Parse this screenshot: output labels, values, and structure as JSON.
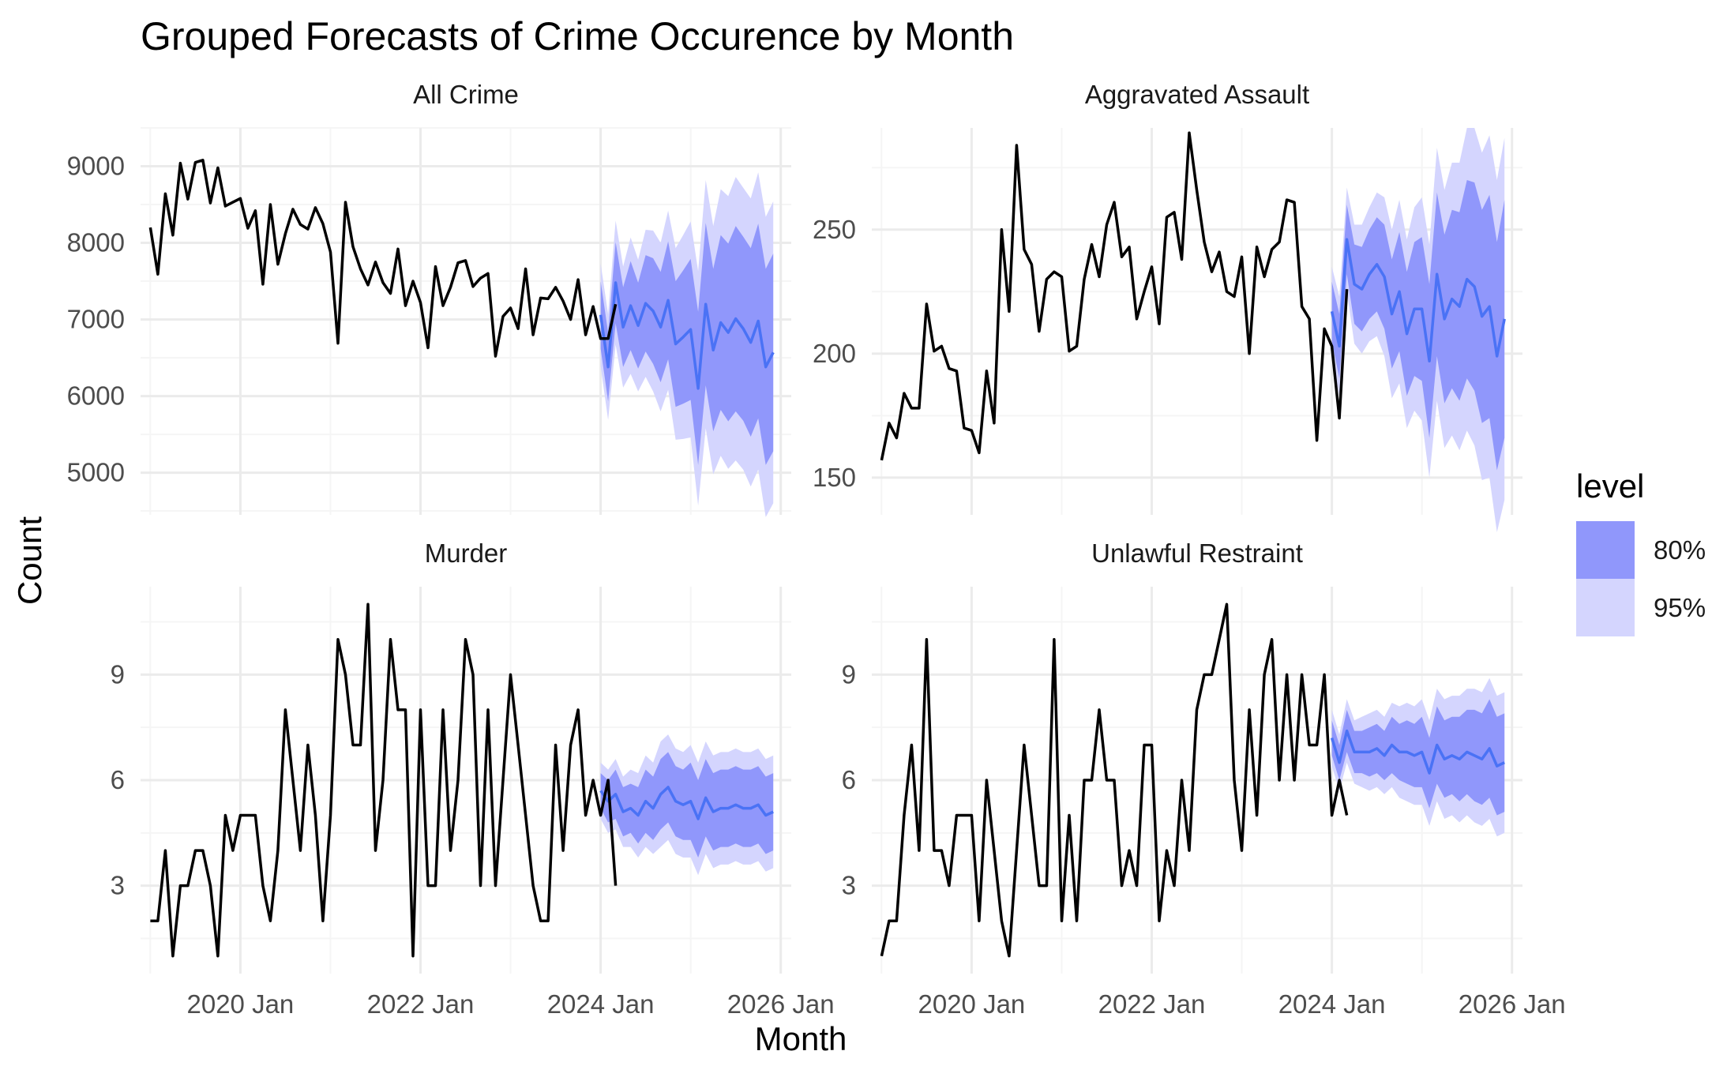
{
  "chart_data": {
    "type": "line",
    "title": "Grouped Forecasts of Crime Occurence by Month",
    "xlabel": "Month",
    "ylabel": "Count",
    "x_ticks": [
      "2020 Jan",
      "2022 Jan",
      "2024 Jan",
      "2026 Jan"
    ],
    "grid": true,
    "legend": {
      "title": "level",
      "position": "right",
      "entries": [
        {
          "label": "80%",
          "color": "#9097fb"
        },
        {
          "label": "95%",
          "color": "#d4d5fe"
        }
      ]
    },
    "colors": {
      "history": "#000000",
      "forecast": "#4a72f5",
      "band80": "#9097fb",
      "band95": "#d4d5fe",
      "grid_major": "#ebebeb",
      "grid_minor": "#f5f5f5"
    },
    "history_start": "2019-01",
    "forecast_start": "2024-01",
    "panels": [
      {
        "name": "All Crime",
        "ylim": [
          4450,
          9500
        ],
        "y_ticks": [
          5000,
          6000,
          7000,
          8000,
          9000
        ],
        "history": [
          8200,
          7590,
          8640,
          8100,
          9040,
          8570,
          9050,
          9080,
          8520,
          8980,
          8480,
          8530,
          8580,
          8190,
          8420,
          7460,
          8500,
          7720,
          8120,
          8440,
          8240,
          8180,
          8460,
          8250,
          7880,
          6690,
          8530,
          7950,
          7660,
          7450,
          7750,
          7480,
          7340,
          7920,
          7180,
          7500,
          7220,
          6630,
          7690,
          7180,
          7420,
          7740,
          7770,
          7430,
          7540,
          7600,
          6520,
          7040,
          7150,
          6880,
          7660,
          6800,
          7280,
          7270,
          7420,
          7240,
          7000,
          7520,
          6800,
          7170,
          6750,
          6750,
          7200
        ],
        "forecast": [
          7060,
          6380,
          7480,
          6900,
          7180,
          6920,
          7210,
          7110,
          6900,
          7250,
          6680,
          6770,
          6870,
          6100,
          7200,
          6600,
          6960,
          6830,
          7010,
          6880,
          6700,
          6980,
          6380,
          6570
        ],
        "lo80": [
          6620,
          5930,
          6950,
          6380,
          6600,
          6360,
          6580,
          6420,
          6180,
          6480,
          5860,
          5900,
          5950,
          5100,
          6140,
          5540,
          5820,
          5670,
          5800,
          5680,
          5470,
          5710,
          5100,
          5280
        ],
        "hi80": [
          7500,
          6830,
          8010,
          7420,
          7760,
          7480,
          7840,
          7800,
          7620,
          8020,
          7500,
          7640,
          7790,
          7100,
          8260,
          7660,
          8100,
          7990,
          8220,
          8080,
          7930,
          8250,
          7660,
          7860
        ],
        "lo95": [
          6390,
          5690,
          6670,
          6110,
          6290,
          6060,
          6250,
          6060,
          5800,
          6080,
          5430,
          5440,
          5460,
          4570,
          5580,
          4980,
          5220,
          5050,
          5160,
          5040,
          4820,
          5040,
          4420,
          4600
        ],
        "hi95": [
          7730,
          7070,
          8290,
          7690,
          8070,
          7780,
          8170,
          8160,
          8000,
          8420,
          7930,
          8100,
          8280,
          7630,
          8820,
          8220,
          8700,
          8610,
          8860,
          8720,
          8580,
          8920,
          8340,
          8540
        ]
      },
      {
        "name": "Aggravated Assault",
        "ylim": [
          135,
          291
        ],
        "y_ticks": [
          150,
          200,
          250
        ],
        "history": [
          157,
          172,
          166,
          184,
          178,
          178,
          220,
          201,
          203,
          194,
          193,
          170,
          169,
          160,
          193,
          172,
          250,
          217,
          284,
          242,
          236,
          209,
          230,
          233,
          231,
          201,
          203,
          230,
          244,
          231,
          252,
          261,
          239,
          243,
          214,
          225,
          235,
          212,
          255,
          257,
          238,
          289,
          266,
          245,
          233,
          241,
          225,
          223,
          239,
          200,
          243,
          231,
          242,
          245,
          262,
          261,
          219,
          214,
          165,
          210,
          203,
          174,
          226
        ],
        "forecast": [
          217,
          203,
          246,
          228,
          226,
          232,
          236,
          231,
          216,
          225,
          208,
          218,
          218,
          197,
          232,
          214,
          222,
          219,
          230,
          227,
          215,
          219,
          199,
          214
        ],
        "lo80": [
          205,
          190,
          232,
          212,
          209,
          214,
          217,
          210,
          194,
          201,
          183,
          191,
          189,
          166,
          199,
          180,
          186,
          181,
          190,
          185,
          172,
          174,
          153,
          166
        ],
        "hi80": [
          229,
          216,
          260,
          244,
          243,
          250,
          255,
          252,
          238,
          249,
          233,
          245,
          247,
          228,
          265,
          248,
          258,
          257,
          270,
          269,
          258,
          264,
          245,
          262
        ],
        "lo95": [
          199,
          183,
          225,
          204,
          200,
          205,
          207,
          199,
          182,
          188,
          170,
          177,
          173,
          150,
          181,
          162,
          167,
          161,
          169,
          163,
          149,
          150,
          128,
          141
        ],
        "hi95": [
          235,
          223,
          267,
          252,
          252,
          259,
          265,
          263,
          250,
          262,
          246,
          259,
          263,
          244,
          283,
          266,
          277,
          277,
          291,
          291,
          281,
          288,
          270,
          287
        ]
      },
      {
        "name": "Murder",
        "ylim": [
          0.5,
          11.5
        ],
        "y_ticks": [
          3,
          6,
          9
        ],
        "history": [
          2,
          2,
          4,
          1,
          3,
          3,
          4,
          4,
          3,
          1,
          5,
          4,
          5,
          5,
          5,
          3,
          2,
          4,
          8,
          6,
          4,
          7,
          5,
          2,
          5,
          10,
          9,
          7,
          7,
          11,
          4,
          6,
          10,
          8,
          8,
          1,
          8,
          3,
          3,
          8,
          4,
          6,
          10,
          9,
          3,
          8,
          3,
          6,
          9,
          7,
          5,
          3,
          2,
          2,
          7,
          4,
          7,
          8,
          5,
          6,
          5,
          6,
          3
        ],
        "forecast": [
          5.7,
          5.4,
          5.6,
          5.1,
          5.2,
          5.0,
          5.4,
          5.2,
          5.6,
          5.8,
          5.4,
          5.3,
          5.4,
          4.9,
          5.5,
          5.1,
          5.2,
          5.2,
          5.3,
          5.2,
          5.2,
          5.3,
          5.0,
          5.1
        ],
        "lo80": [
          5.2,
          4.8,
          4.9,
          4.4,
          4.5,
          4.2,
          4.5,
          4.3,
          4.6,
          4.8,
          4.4,
          4.3,
          4.3,
          3.8,
          4.4,
          4.0,
          4.1,
          4.1,
          4.2,
          4.1,
          4.1,
          4.2,
          3.9,
          4.0
        ],
        "hi80": [
          6.2,
          6.0,
          6.3,
          5.8,
          5.9,
          5.8,
          6.3,
          6.1,
          6.6,
          6.8,
          6.4,
          6.3,
          6.5,
          6.0,
          6.6,
          6.2,
          6.3,
          6.3,
          6.4,
          6.3,
          6.3,
          6.4,
          6.1,
          6.2
        ],
        "lo95": [
          4.9,
          4.5,
          4.6,
          4.1,
          4.1,
          3.8,
          4.1,
          3.9,
          4.1,
          4.3,
          3.9,
          3.8,
          3.8,
          3.3,
          3.9,
          3.5,
          3.6,
          3.6,
          3.7,
          3.6,
          3.6,
          3.7,
          3.4,
          3.5
        ],
        "hi95": [
          6.5,
          6.3,
          6.6,
          6.1,
          6.3,
          6.2,
          6.7,
          6.5,
          7.1,
          7.3,
          6.9,
          6.8,
          7.0,
          6.5,
          7.1,
          6.7,
          6.8,
          6.8,
          6.9,
          6.8,
          6.8,
          6.9,
          6.6,
          6.7
        ]
      },
      {
        "name": "Unlawful Restraint",
        "ylim": [
          0.5,
          11.5
        ],
        "y_ticks": [
          3,
          6,
          9
        ],
        "history": [
          1,
          2,
          2,
          5,
          7,
          4,
          10,
          4,
          4,
          3,
          5,
          5,
          5,
          2,
          6,
          4,
          2,
          1,
          4,
          7,
          5,
          3,
          3,
          10,
          2,
          5,
          2,
          6,
          6,
          8,
          6,
          6,
          3,
          4,
          3,
          7,
          7,
          2,
          4,
          3,
          6,
          4,
          8,
          9,
          9,
          10,
          11,
          6,
          4,
          8,
          5,
          9,
          10,
          6,
          9,
          6,
          9,
          7,
          7,
          9,
          5,
          6,
          5
        ],
        "forecast": [
          7.2,
          6.5,
          7.4,
          6.8,
          6.8,
          6.8,
          6.9,
          6.7,
          7.0,
          6.8,
          6.8,
          6.7,
          6.8,
          6.2,
          7.0,
          6.6,
          6.7,
          6.6,
          6.8,
          6.7,
          6.6,
          6.9,
          6.4,
          6.5
        ],
        "lo80": [
          6.7,
          6.0,
          6.8,
          6.2,
          6.2,
          6.1,
          6.2,
          6.0,
          6.2,
          6.0,
          5.9,
          5.8,
          5.8,
          5.2,
          5.9,
          5.5,
          5.6,
          5.4,
          5.6,
          5.4,
          5.3,
          5.5,
          5.0,
          5.1
        ],
        "hi80": [
          7.7,
          7.0,
          8.0,
          7.4,
          7.4,
          7.5,
          7.6,
          7.4,
          7.8,
          7.6,
          7.7,
          7.6,
          7.8,
          7.2,
          8.1,
          7.7,
          7.8,
          7.8,
          8.0,
          8.0,
          7.9,
          8.3,
          7.8,
          7.9
        ],
        "lo95": [
          6.4,
          5.7,
          6.5,
          5.9,
          5.8,
          5.7,
          5.8,
          5.6,
          5.8,
          5.5,
          5.4,
          5.3,
          5.3,
          4.7,
          5.4,
          4.9,
          5.0,
          4.8,
          5.0,
          4.8,
          4.7,
          4.9,
          4.4,
          4.5
        ],
        "hi95": [
          8.0,
          7.3,
          8.3,
          7.7,
          7.8,
          7.9,
          8.0,
          7.8,
          8.2,
          8.1,
          8.2,
          8.1,
          8.3,
          7.7,
          8.6,
          8.3,
          8.4,
          8.4,
          8.6,
          8.6,
          8.5,
          8.9,
          8.4,
          8.5
        ]
      }
    ]
  }
}
